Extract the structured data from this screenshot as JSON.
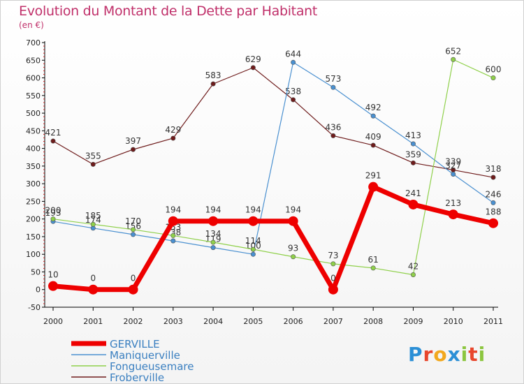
{
  "header": {
    "title": "Evolution du Montant de la Dette par Habitant",
    "subtitle": "(en €)"
  },
  "brand": {
    "text": "Proxiti",
    "colors": [
      "#2b8fd6",
      "#e8462c",
      "#f2a81d",
      "#2b8fd6",
      "#8cc63f",
      "#e8462c",
      "#8cc63f"
    ]
  },
  "chart_data": {
    "type": "line",
    "title": "Evolution du Montant de la Dette par Habitant",
    "subtitle": "(en €)",
    "xlabel": "",
    "ylabel": "",
    "ylim": [
      -50,
      700
    ],
    "y_ticks": [
      -50,
      0,
      50,
      100,
      150,
      200,
      250,
      300,
      350,
      400,
      450,
      500,
      550,
      600,
      650,
      700
    ],
    "categories": [
      "2000",
      "2001",
      "2002",
      "2003",
      "2004",
      "2005",
      "2006",
      "2007",
      "2008",
      "2009",
      "2010",
      "2011"
    ],
    "legend_position": "bottom-left",
    "grid": false,
    "series": [
      {
        "name": "Froberville",
        "color": "#6e1b1b",
        "values": [
          421,
          355,
          397,
          429,
          583,
          629,
          538,
          436,
          409,
          359,
          339,
          318
        ]
      },
      {
        "name": "Maniquerville",
        "color": "#4a90d0",
        "values": [
          193,
          174,
          156,
          138,
          119,
          100,
          644,
          573,
          492,
          413,
          327,
          246
        ]
      },
      {
        "name": "Fongueusemare",
        "color": "#8fd04a",
        "values": [
          200,
          185,
          170,
          153,
          134,
          114,
          93,
          73,
          61,
          42,
          652,
          600
        ]
      },
      {
        "name": "GERVILLE",
        "color": "#ee0000",
        "values": [
          10,
          0,
          0,
          194,
          194,
          194,
          194,
          0,
          291,
          241,
          213,
          188
        ]
      }
    ],
    "legend_order": [
      "GERVILLE",
      "Maniquerville",
      "Fongueusemare",
      "Froberville"
    ]
  }
}
